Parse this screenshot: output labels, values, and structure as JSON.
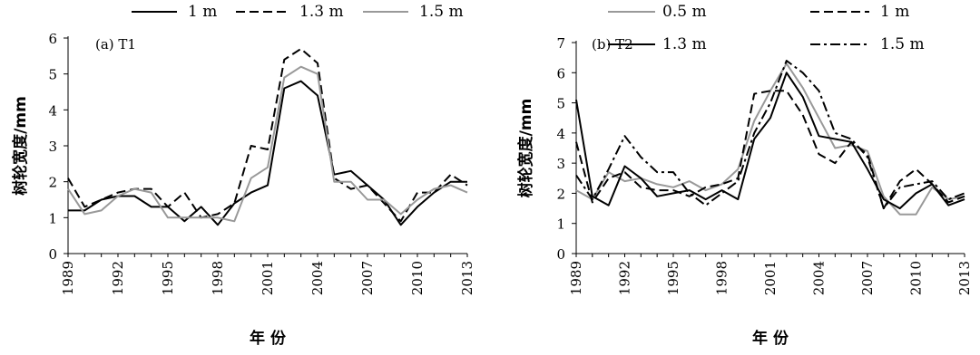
{
  "chart_data": [
    {
      "type": "line",
      "panel_label": "(a) T1",
      "xlabel": "年  份",
      "ylabel": "树轮宽度/mm",
      "xlim": [
        1989,
        2013
      ],
      "ylim": [
        0,
        6
      ],
      "yticks": [
        0,
        1,
        2,
        3,
        4,
        5,
        6
      ],
      "xticks": [
        1989,
        1992,
        1995,
        1998,
        2001,
        2004,
        2007,
        2010,
        2013
      ],
      "x": [
        1989,
        1990,
        1991,
        1992,
        1993,
        1994,
        1995,
        1996,
        1997,
        1998,
        1999,
        2000,
        2001,
        2002,
        2003,
        2004,
        2005,
        2006,
        2007,
        2008,
        2009,
        2010,
        2011,
        2012,
        2013
      ],
      "legend_position": "top",
      "series": [
        {
          "name": "1 m",
          "color": "#000000",
          "dash": "solid",
          "values": [
            1.2,
            1.2,
            1.5,
            1.6,
            1.6,
            1.3,
            1.3,
            0.9,
            1.3,
            0.8,
            1.4,
            1.7,
            1.9,
            4.6,
            4.8,
            4.4,
            2.2,
            2.3,
            1.9,
            1.5,
            0.8,
            1.3,
            1.7,
            2.0,
            2.0
          ]
        },
        {
          "name": "1.3 m",
          "color": "#000000",
          "dash": "dashed",
          "values": [
            2.1,
            1.3,
            1.5,
            1.7,
            1.8,
            1.8,
            1.3,
            1.7,
            1.0,
            1.1,
            1.4,
            3.0,
            2.9,
            5.4,
            5.7,
            5.3,
            2.1,
            1.8,
            1.9,
            1.4,
            0.9,
            1.7,
            1.7,
            2.2,
            1.9
          ]
        },
        {
          "name": "1.5 m",
          "color": "#999999",
          "dash": "solid",
          "values": [
            1.8,
            1.1,
            1.2,
            1.6,
            1.8,
            1.7,
            1.0,
            1.0,
            1.0,
            1.0,
            0.9,
            2.1,
            2.4,
            4.9,
            5.2,
            5.0,
            2.0,
            2.0,
            1.5,
            1.5,
            1.1,
            1.5,
            1.8,
            1.9,
            1.7
          ]
        }
      ]
    },
    {
      "type": "line",
      "panel_label": "(b) T2",
      "xlabel": "年  份",
      "ylabel": "树轮宽度/mm",
      "xlim": [
        1989,
        2013
      ],
      "ylim": [
        0,
        7
      ],
      "yticks": [
        0,
        1,
        2,
        3,
        4,
        5,
        6,
        7
      ],
      "xticks": [
        1989,
        1992,
        1995,
        1998,
        2001,
        2004,
        2007,
        2010,
        2013
      ],
      "x": [
        1989,
        1990,
        1991,
        1992,
        1993,
        1994,
        1995,
        1996,
        1997,
        1998,
        1999,
        2000,
        2001,
        2002,
        2003,
        2004,
        2005,
        2006,
        2007,
        2008,
        2009,
        2010,
        2011,
        2012,
        2013
      ],
      "legend_position": "top",
      "series": [
        {
          "name": "0.5 m",
          "color": "#999999",
          "dash": "solid",
          "values": [
            2.1,
            1.8,
            2.7,
            2.4,
            2.5,
            2.3,
            2.2,
            2.4,
            2.1,
            2.3,
            2.8,
            4.4,
            5.4,
            6.3,
            5.5,
            4.5,
            3.5,
            3.6,
            3.4,
            1.9,
            1.3,
            1.3,
            2.2,
            1.8,
            1.9
          ]
        },
        {
          "name": "1 m",
          "color": "#000000",
          "dash": "dashed",
          "values": [
            3.7,
            1.7,
            2.5,
            2.7,
            2.2,
            2.1,
            2.1,
            1.9,
            2.2,
            2.3,
            2.5,
            5.3,
            5.4,
            5.4,
            4.6,
            3.3,
            3.0,
            3.7,
            3.3,
            1.5,
            2.4,
            2.8,
            2.3,
            1.7,
            1.9
          ]
        },
        {
          "name": "1.3 m",
          "color": "#000000",
          "dash": "solid",
          "values": [
            5.1,
            1.9,
            1.6,
            2.9,
            2.5,
            1.9,
            2.0,
            2.1,
            1.8,
            2.1,
            1.8,
            3.8,
            4.5,
            6.0,
            5.2,
            3.9,
            3.8,
            3.7,
            2.8,
            1.8,
            1.5,
            2.0,
            2.3,
            1.6,
            1.8
          ]
        },
        {
          "name": "1.5 m",
          "color": "#000000",
          "dash": "dashdot",
          "values": [
            2.6,
            1.8,
            2.8,
            3.9,
            3.2,
            2.7,
            2.7,
            2.0,
            1.6,
            2.0,
            2.4,
            4.0,
            5.0,
            6.4,
            6.0,
            5.4,
            4.0,
            3.8,
            3.2,
            1.5,
            2.2,
            2.3,
            2.4,
            1.8,
            2.0
          ]
        }
      ]
    }
  ]
}
